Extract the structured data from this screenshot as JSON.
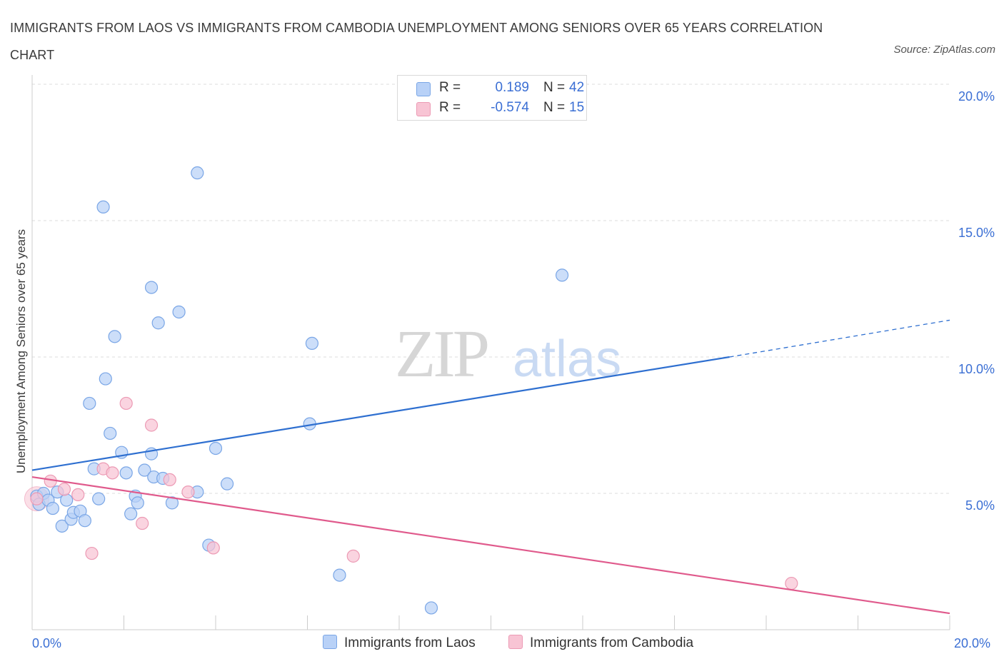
{
  "title": "IMMIGRANTS FROM LAOS VS IMMIGRANTS FROM CAMBODIA UNEMPLOYMENT AMONG SENIORS OVER 65 YEARS CORRELATION CHART",
  "source": "Source: ZipAtlas.com",
  "legend": {
    "laos": {
      "r_label": "R =",
      "r_value": "0.189",
      "n_label": "N =",
      "n_value": "42"
    },
    "cambodia": {
      "r_label": "R =",
      "r_value": "-0.574",
      "n_label": "N =",
      "n_value": "15"
    }
  },
  "colors": {
    "laos_fill": "#b8d1f7",
    "laos_stroke": "#7aa6e6",
    "laos_line": "#2e6fd0",
    "cambodia_fill": "#f8c4d4",
    "cambodia_stroke": "#ec9ab4",
    "cambodia_line": "#e05a8c",
    "axis_text": "#3b6fd4",
    "grid": "#dddddd"
  },
  "chart_data": {
    "type": "scatter",
    "title": "IMMIGRANTS FROM LAOS VS IMMIGRANTS FROM CAMBODIA UNEMPLOYMENT AMONG SENIORS OVER 65 YEARS CORRELATION CHART",
    "xlabel": "",
    "ylabel": "Unemployment Among Seniors over 65 years",
    "xlim": [
      0,
      20
    ],
    "ylim": [
      0,
      20
    ],
    "x_tick_labels": [
      "0.0%",
      "20.0%"
    ],
    "y_tick_labels": [
      "5.0%",
      "10.0%",
      "15.0%",
      "20.0%"
    ],
    "y_ticks": [
      5,
      10,
      15,
      20
    ],
    "watermark": {
      "zip": "ZIP",
      "atlas": "atlas"
    },
    "series": [
      {
        "name": "Immigrants from Laos",
        "r": 0.189,
        "n": 42,
        "trend": {
          "x0": 0,
          "y0": 5.85,
          "x1": 15.2,
          "y1": 10.0,
          "dash_to_x": 20,
          "dash_to_y": 11.35
        },
        "points": [
          [
            0.1,
            4.9
          ],
          [
            0.15,
            4.6
          ],
          [
            0.25,
            5.0
          ],
          [
            0.35,
            4.75
          ],
          [
            0.45,
            4.45
          ],
          [
            0.55,
            5.05
          ],
          [
            0.65,
            3.8
          ],
          [
            0.75,
            4.75
          ],
          [
            0.85,
            4.05
          ],
          [
            0.9,
            4.3
          ],
          [
            1.05,
            4.35
          ],
          [
            1.15,
            4.0
          ],
          [
            1.25,
            8.3
          ],
          [
            1.35,
            5.9
          ],
          [
            1.45,
            4.8
          ],
          [
            1.55,
            15.5
          ],
          [
            1.6,
            9.2
          ],
          [
            1.7,
            7.2
          ],
          [
            1.8,
            10.75
          ],
          [
            1.95,
            6.5
          ],
          [
            2.05,
            5.75
          ],
          [
            2.15,
            4.25
          ],
          [
            2.25,
            4.9
          ],
          [
            2.3,
            4.65
          ],
          [
            2.45,
            5.85
          ],
          [
            2.6,
            6.45
          ],
          [
            2.6,
            12.55
          ],
          [
            2.65,
            5.6
          ],
          [
            2.75,
            11.25
          ],
          [
            2.85,
            5.55
          ],
          [
            3.05,
            4.65
          ],
          [
            3.2,
            11.65
          ],
          [
            3.6,
            16.75
          ],
          [
            3.6,
            5.05
          ],
          [
            3.85,
            3.1
          ],
          [
            4.0,
            6.65
          ],
          [
            4.25,
            5.35
          ],
          [
            6.1,
            10.5
          ],
          [
            6.05,
            7.55
          ],
          [
            6.7,
            2.0
          ],
          [
            8.7,
            0.8
          ],
          [
            11.55,
            13.0
          ]
        ]
      },
      {
        "name": "Immigrants from Cambodia",
        "r": -0.574,
        "n": 15,
        "trend": {
          "x0": 0,
          "y0": 5.6,
          "x1": 20,
          "y1": 0.6
        },
        "points": [
          [
            0.1,
            4.8
          ],
          [
            0.4,
            5.45
          ],
          [
            0.7,
            5.15
          ],
          [
            1.0,
            4.95
          ],
          [
            1.3,
            2.8
          ],
          [
            1.55,
            5.9
          ],
          [
            1.75,
            5.75
          ],
          [
            2.05,
            8.3
          ],
          [
            2.4,
            3.9
          ],
          [
            2.6,
            7.5
          ],
          [
            3.0,
            5.5
          ],
          [
            3.4,
            5.05
          ],
          [
            3.95,
            3.0
          ],
          [
            7.0,
            2.7
          ],
          [
            16.55,
            1.7
          ]
        ]
      }
    ]
  },
  "bottom_legend": {
    "laos": "Immigrants from Laos",
    "cambodia": "Immigrants from Cambodia"
  }
}
